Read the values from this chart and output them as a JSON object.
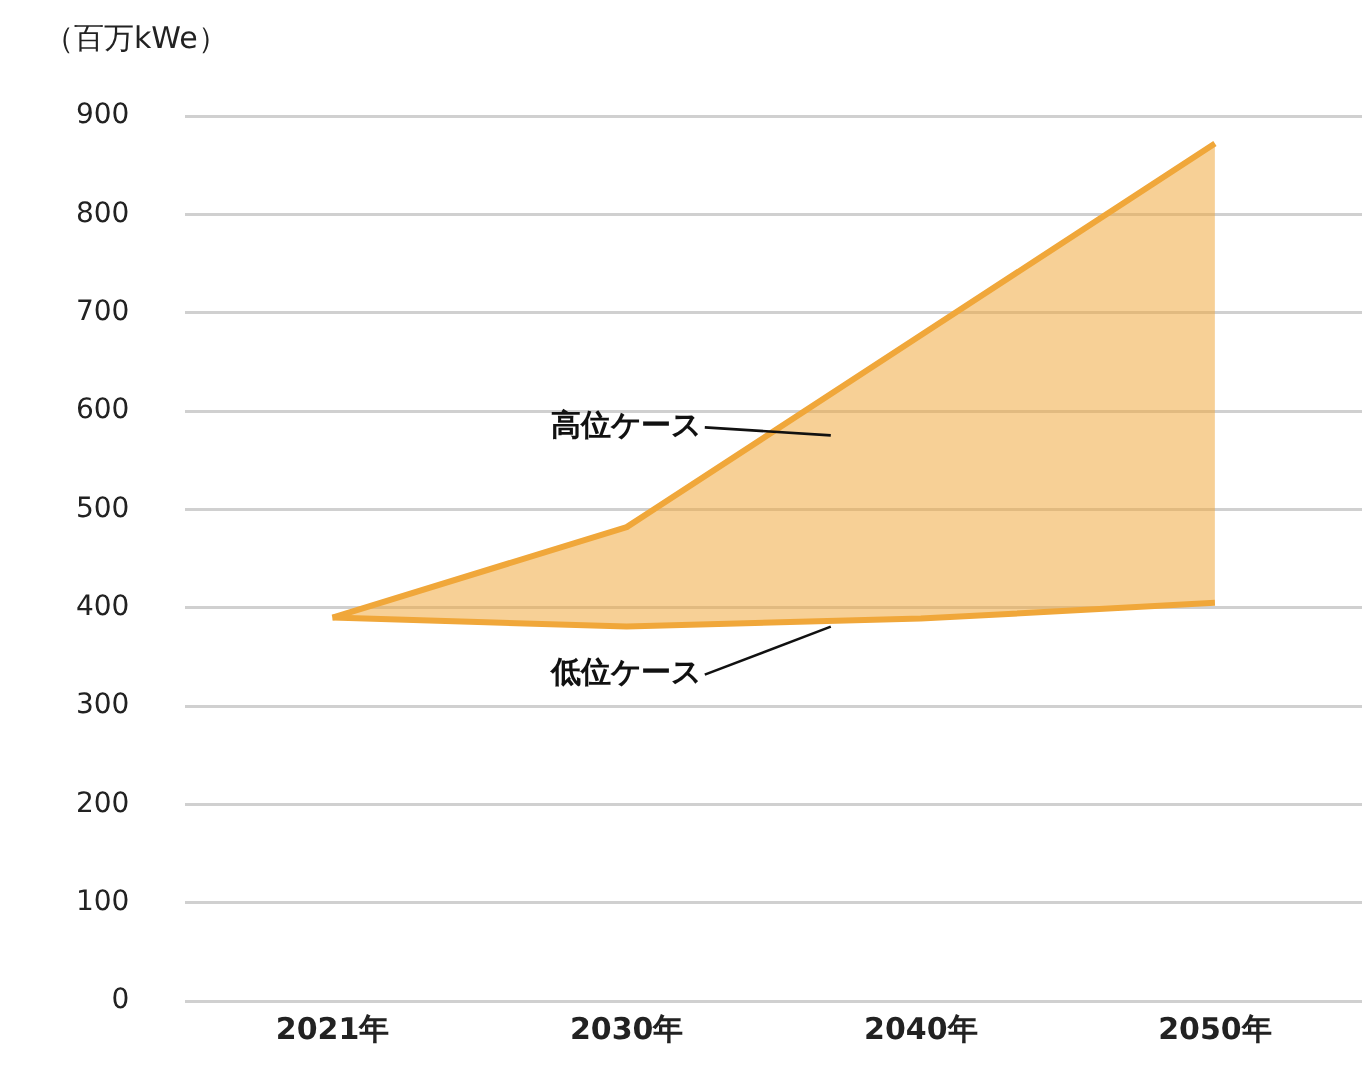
{
  "chart_data": {
    "type": "line",
    "ylabel": "（百万kWe）",
    "categories": [
      "2021年",
      "2030年",
      "2040年",
      "2050年"
    ],
    "series": [
      {
        "name": "低位ケース",
        "color": "#f0a73a",
        "values": [
          390,
          381,
          389,
          405
        ]
      },
      {
        "name": "高位ケース",
        "color": "#f0a73a",
        "values": [
          390,
          482,
          677,
          872
        ],
        "lower": [
          390,
          381,
          389,
          405
        ],
        "upper": [
          390,
          482,
          677,
          872
        ]
      }
    ],
    "ylim": [
      0,
      900
    ],
    "yticks": [
      0,
      100,
      200,
      300,
      400,
      500,
      600,
      700,
      800,
      900
    ],
    "grid": "y",
    "legend": false
  }
}
